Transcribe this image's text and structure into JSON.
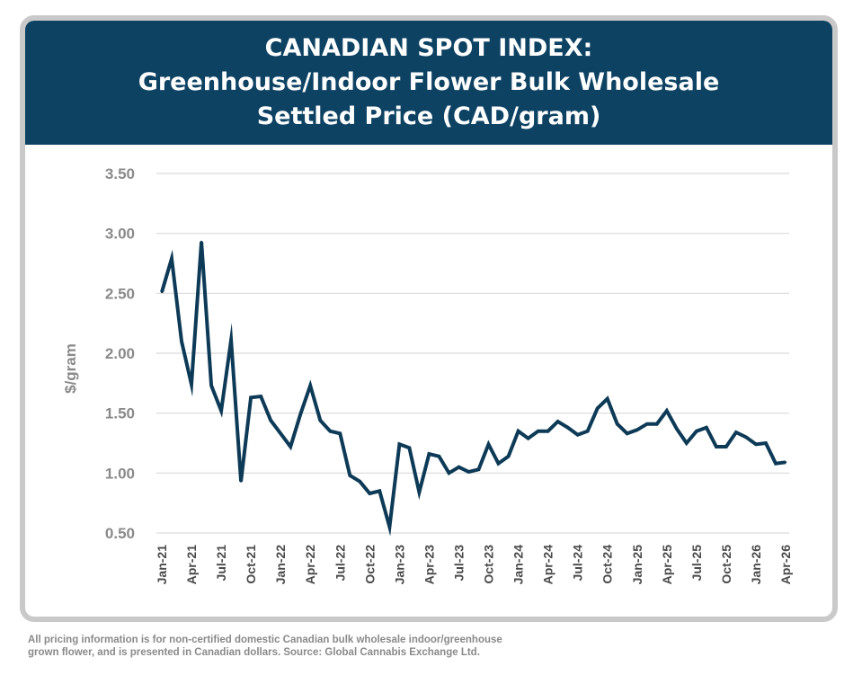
{
  "header": {
    "line1": "CANADIAN SPOT INDEX:",
    "line2": "Greenhouse/Indoor Flower Bulk Wholesale",
    "line3": "Settled Price  (CAD/gram)"
  },
  "footnote": {
    "line1": "All pricing information is for non-certified domestic Canadian bulk wholesale indoor/greenhouse",
    "line2": "grown flower, and is presented in Canadian dollars. Source: Global Cannabis Exchange Ltd."
  },
  "colors": {
    "banner": "#0d4263",
    "line": "#0d3a57",
    "axis_text": "#8a8a8a",
    "grid": "#d9d9d9"
  },
  "chart_data": {
    "type": "line",
    "title": "CANADIAN SPOT INDEX: Greenhouse/Indoor Flower Bulk Wholesale Settled Price  (CAD/gram)",
    "xlabel": "",
    "ylabel": "$/gram",
    "ylim": [
      0.5,
      3.5
    ],
    "yticks": [
      "0.50",
      "1.00",
      "1.50",
      "2.00",
      "2.50",
      "3.00",
      "3.50"
    ],
    "grid": true,
    "legend": "none",
    "x_tick_labels": [
      "Jan-21",
      "Apr-21",
      "Jul-21",
      "Oct-21",
      "Jan-22",
      "Apr-22",
      "Jul-22",
      "Oct-22",
      "Jan-23",
      "Apr-23",
      "Jul-23",
      "Oct-23",
      "Jan-24",
      "Apr-24",
      "Jul-24",
      "Oct-24",
      "Jan-25",
      "Apr-25",
      "Jul-25",
      "Oct-25",
      "Jan-26",
      "Apr-26"
    ],
    "x": [
      "Jan-21",
      "Feb-21",
      "Mar-21",
      "Apr-21",
      "May-21",
      "Jun-21",
      "Jul-21",
      "Aug-21",
      "Sep-21",
      "Oct-21",
      "Nov-21",
      "Dec-21",
      "Jan-22",
      "Feb-22",
      "Mar-22",
      "Apr-22",
      "May-22",
      "Jun-22",
      "Jul-22",
      "Aug-22",
      "Sep-22",
      "Oct-22",
      "Nov-22",
      "Dec-22",
      "Jan-23",
      "Feb-23",
      "Mar-23",
      "Apr-23",
      "May-23",
      "Jun-23",
      "Jul-23",
      "Aug-23",
      "Sep-23",
      "Oct-23",
      "Nov-23",
      "Dec-23",
      "Jan-24",
      "Feb-24",
      "Mar-24",
      "Apr-24",
      "May-24",
      "Jun-24",
      "Jul-24",
      "Aug-24",
      "Sep-24",
      "Oct-24",
      "Nov-24",
      "Dec-24",
      "Jan-25",
      "Feb-25",
      "Mar-25",
      "Apr-25",
      "May-25",
      "Jun-25",
      "Jul-25",
      "Aug-25",
      "Sep-25",
      "Oct-25",
      "Nov-25",
      "Dec-25",
      "Jan-26",
      "Feb-26",
      "Mar-26",
      "Apr-26"
    ],
    "series": [
      {
        "values": [
          2.51,
          2.79,
          2.1,
          1.74,
          2.93,
          1.73,
          1.52,
          2.11,
          0.93,
          1.63,
          1.64,
          1.44,
          1.33,
          1.22,
          1.49,
          1.73,
          1.44,
          1.35,
          1.33,
          0.98,
          0.93,
          0.83,
          0.85,
          0.55,
          1.24,
          1.21,
          0.84,
          1.16,
          1.14,
          1.0,
          1.05,
          1.01,
          1.03,
          1.24,
          1.08,
          1.14,
          1.35,
          1.29,
          1.35,
          1.35,
          1.43,
          1.38,
          1.32,
          1.35,
          1.54,
          1.62,
          1.41,
          1.33,
          1.36,
          1.41,
          1.41,
          1.52,
          1.37,
          1.25,
          1.35,
          1.38,
          1.22,
          1.22,
          1.34,
          1.3,
          1.24,
          1.25,
          1.08,
          1.09
        ]
      }
    ]
  }
}
